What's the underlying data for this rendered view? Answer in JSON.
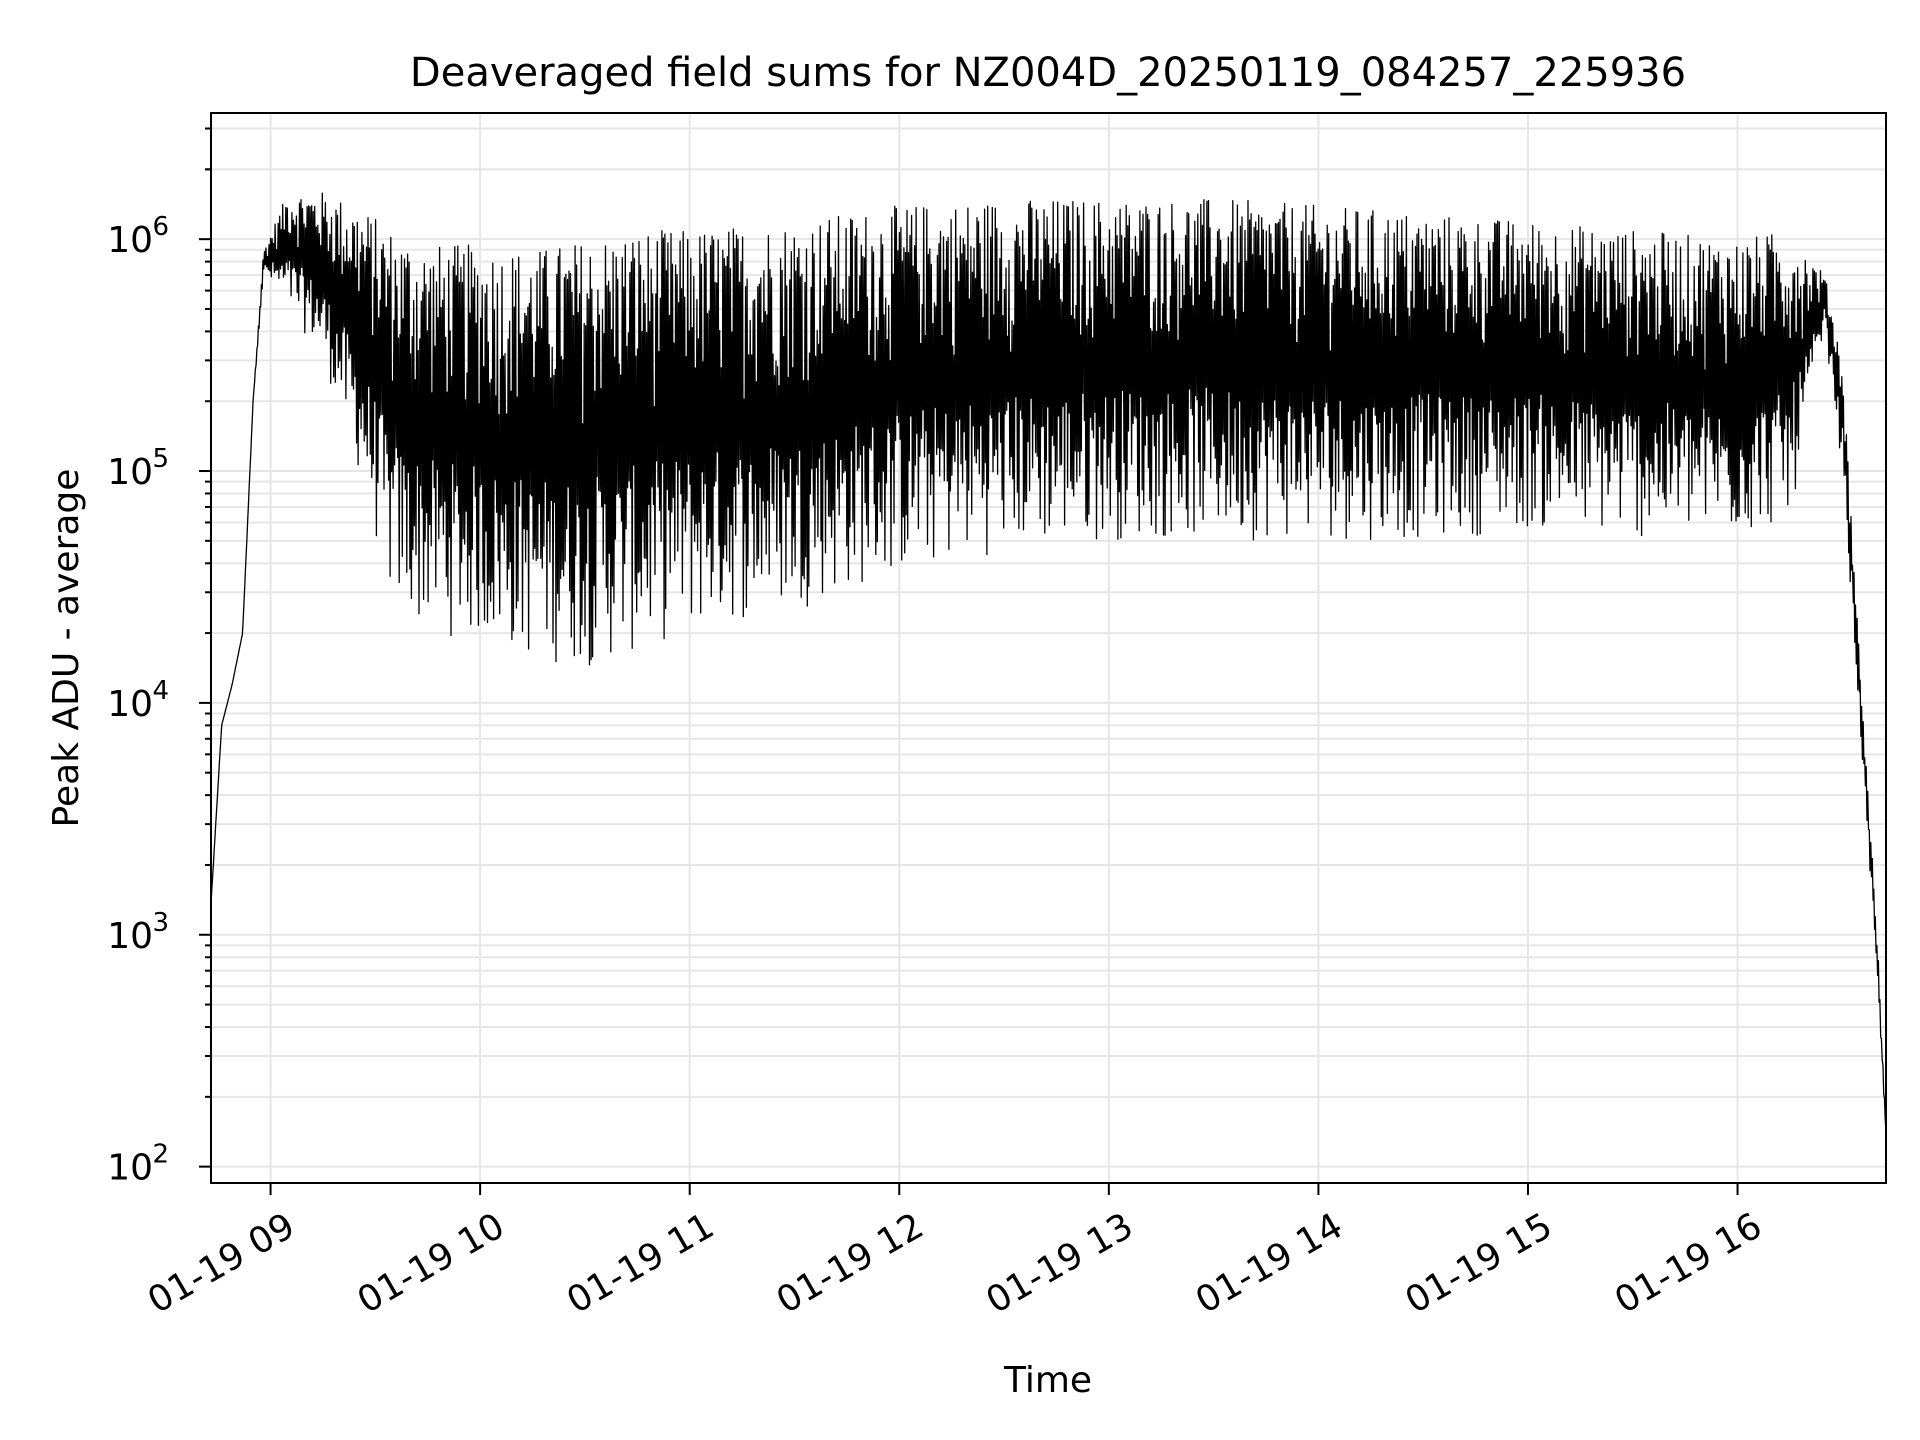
{
  "chart_data": {
    "type": "line",
    "title": "Deaveraged field sums for NZ004D_20250119_084257_225936",
    "xlabel": "Time",
    "ylabel": "Peak ADU - average",
    "x_range": [
      "2025-01-19T08:42:57",
      "2025-01-19T16:42:30"
    ],
    "x_ticks": [
      {
        "time": "2025-01-19T09:00:00",
        "label": "01-19 09"
      },
      {
        "time": "2025-01-19T10:00:00",
        "label": "01-19 10"
      },
      {
        "time": "2025-01-19T11:00:00",
        "label": "01-19 11"
      },
      {
        "time": "2025-01-19T12:00:00",
        "label": "01-19 12"
      },
      {
        "time": "2025-01-19T13:00:00",
        "label": "01-19 13"
      },
      {
        "time": "2025-01-19T14:00:00",
        "label": "01-19 14"
      },
      {
        "time": "2025-01-19T15:00:00",
        "label": "01-19 15"
      },
      {
        "time": "2025-01-19T16:00:00",
        "label": "01-19 16"
      }
    ],
    "y_scale": "log",
    "ylim": [
      85,
      3500000
    ],
    "y_ticks": [
      {
        "value": 100,
        "base": "10",
        "exp": "2"
      },
      {
        "value": 1000,
        "base": "10",
        "exp": "3"
      },
      {
        "value": 10000,
        "base": "10",
        "exp": "4"
      },
      {
        "value": 100000,
        "base": "10",
        "exp": "5"
      },
      {
        "value": 1000000,
        "base": "10",
        "exp": "6"
      }
    ],
    "grid": true,
    "line_color": "#000000",
    "grid_color": "#e6e6e6",
    "series": [
      {
        "note_envelope": "dense oscillating signal; values below are approximate envelope readings",
        "x": [
          "2025-01-19T08:43:00",
          "2025-01-19T08:46:00",
          "2025-01-19T08:49:00",
          "2025-01-19T08:52:00",
          "2025-01-19T08:55:00",
          "2025-01-19T08:58:00",
          "2025-01-19T09:05:00",
          "2025-01-19T09:15:00",
          "2025-01-19T09:25:00",
          "2025-01-19T09:35:00",
          "2025-01-19T09:45:00",
          "2025-01-19T10:00:00",
          "2025-01-19T10:15:00",
          "2025-01-19T10:30:00",
          "2025-01-19T10:45:00",
          "2025-01-19T11:00:00",
          "2025-01-19T11:30:00",
          "2025-01-19T12:00:00",
          "2025-01-19T12:30:00",
          "2025-01-19T13:00:00",
          "2025-01-19T13:30:00",
          "2025-01-19T14:00:00",
          "2025-01-19T14:30:00",
          "2025-01-19T15:00:00",
          "2025-01-19T15:30:00",
          "2025-01-19T16:00:00",
          "2025-01-19T16:15:00",
          "2025-01-19T16:25:00",
          "2025-01-19T16:30:00",
          "2025-01-19T16:35:00",
          "2025-01-19T16:40:00",
          "2025-01-19T16:42:30"
        ],
        "upper": [
          1400,
          8000,
          12000,
          20000,
          200000,
          900000,
          1600000,
          1600000,
          1400000,
          1100000,
          950000,
          950000,
          900000,
          1000000,
          1100000,
          1100000,
          1200000,
          1400000,
          1500000,
          1500000,
          1500000,
          1400000,
          1300000,
          1200000,
          1100000,
          1000000,
          1100000,
          700000,
          300000,
          15000,
          1000,
          140
        ],
        "lower": [
          1400,
          8000,
          12000,
          20000,
          200000,
          700000,
          500000,
          300000,
          100000,
          25000,
          20000,
          18000,
          15000,
          14000,
          16000,
          20000,
          25000,
          35000,
          45000,
          50000,
          50000,
          50000,
          50000,
          55000,
          50000,
          50000,
          60000,
          400000,
          100000,
          8000,
          600,
          140
        ]
      }
    ]
  }
}
